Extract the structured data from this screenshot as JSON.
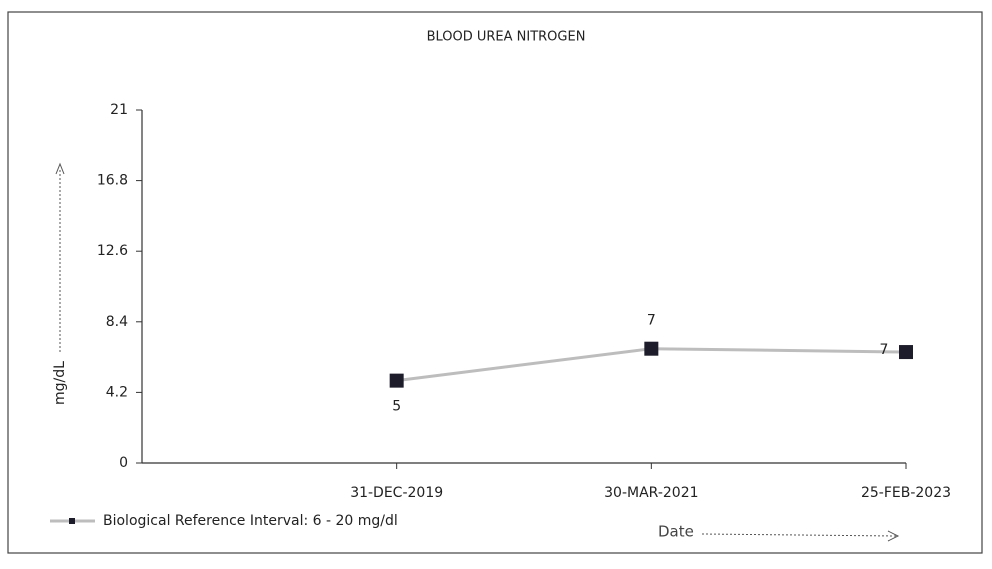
{
  "chart_data": {
    "type": "line",
    "title": "BLOOD UREA NITROGEN",
    "y_label": "mg/dL",
    "x_label": "Date",
    "categories": [
      null,
      "31-DEC-2019",
      "30-MAR-2021",
      "25-FEB-2023"
    ],
    "series": [
      {
        "name": "Biological Reference Interval: 6 - 20 mg/dl",
        "color": "#bdbdbd",
        "marker_color": "#1c1c2a",
        "values": [
          null,
          4.9,
          6.8,
          6.6
        ],
        "value_labels": [
          null,
          "5",
          "7",
          "7"
        ]
      }
    ],
    "ylim": [
      0,
      21
    ],
    "yticks": [
      0,
      4.2,
      8.4,
      12.6,
      16.8,
      21
    ]
  }
}
